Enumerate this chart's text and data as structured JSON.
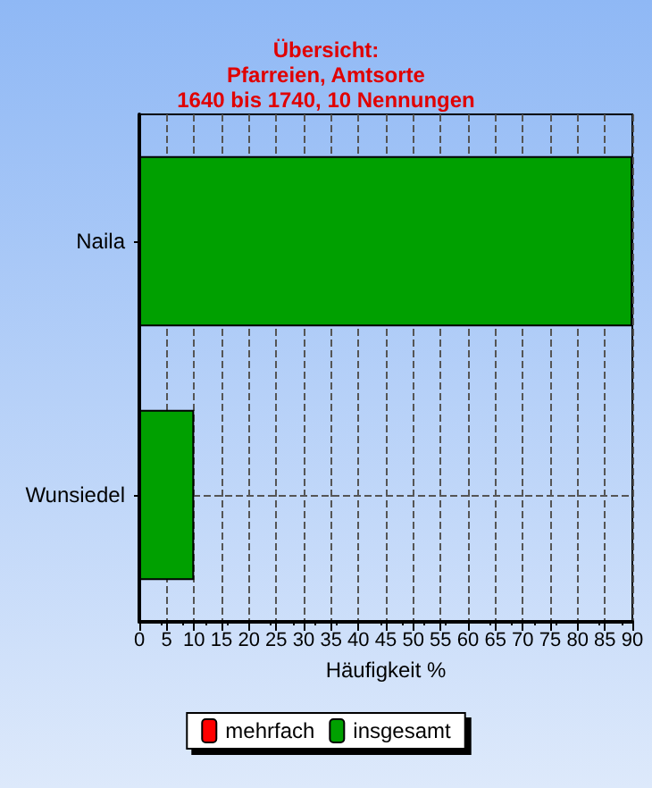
{
  "chart_data": {
    "type": "bar",
    "orientation": "horizontal",
    "title": "Übersicht:\nPfarreien, Amtsorte\n1640 bis 1740, 10 Nennungen",
    "xlabel": "Häufigkeit %",
    "categories": [
      "Naila",
      "Wunsiedel"
    ],
    "series": [
      {
        "name": "mehrfach",
        "color": "#ff0000",
        "values": [
          null,
          null
        ]
      },
      {
        "name": "insgesamt",
        "color": "#00a000",
        "values": [
          90,
          10
        ]
      }
    ],
    "xlim": [
      0,
      90
    ],
    "xticks": [
      0,
      5,
      10,
      15,
      20,
      25,
      30,
      35,
      40,
      45,
      50,
      55,
      60,
      65,
      70,
      75,
      80,
      85,
      90
    ],
    "grid": true,
    "legend": "bottom"
  }
}
